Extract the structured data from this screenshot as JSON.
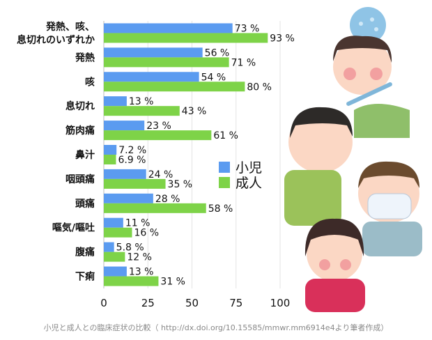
{
  "chart_data": {
    "type": "bar",
    "categories": [
      "発熱、咳、息切れのいずれか",
      "発熱",
      "咳",
      "息切れ",
      "筋肉痛",
      "鼻汁",
      "咽頭痛",
      "頭痛",
      "嘔気/嘔吐",
      "腹痛",
      "下痢"
    ],
    "category_lines": [
      [
        "発熱、咳、",
        "息切れのいずれか"
      ],
      [
        "発熱"
      ],
      [
        "咳"
      ],
      [
        "息切れ"
      ],
      [
        "筋肉痛"
      ],
      [
        "鼻汁"
      ],
      [
        "咽頭痛"
      ],
      [
        "頭痛"
      ],
      [
        "嘔気/嘔吐"
      ],
      [
        "腹痛"
      ],
      [
        "下痢"
      ]
    ],
    "series": [
      {
        "name": "小児",
        "color": "#5b9bf0",
        "values": [
          73,
          56,
          54,
          13,
          23,
          7.2,
          24,
          28,
          11,
          5.8,
          13
        ],
        "labels": [
          "73 %",
          "56 %",
          "54 %",
          "13 %",
          "23 %",
          "7.2 %",
          "24 %",
          "28 %",
          "11 %",
          "5.8 %",
          "13 %"
        ]
      },
      {
        "name": "成人",
        "color": "#7ed348",
        "values": [
          93,
          71,
          80,
          43,
          61,
          6.9,
          35,
          58,
          16,
          12,
          31
        ],
        "labels": [
          "93 %",
          "71 %",
          "80 %",
          "43 %",
          "61 %",
          "6.9 %",
          "35 %",
          "58 %",
          "16 %",
          "12 %",
          "31 %"
        ]
      }
    ],
    "xlim": [
      0,
      100
    ],
    "xticks": [
      0,
      25,
      50,
      75,
      100
    ],
    "xticklabels": [
      "0",
      "25",
      "50",
      "75",
      "100"
    ],
    "grid": true,
    "legend_position": "center-right",
    "xlabel": "",
    "ylabel": ""
  },
  "caption": "小児と成人との臨床症状の比較（ http://dx.doi.org/10.15585/mmwr.mm6914e4より筆者作成）"
}
